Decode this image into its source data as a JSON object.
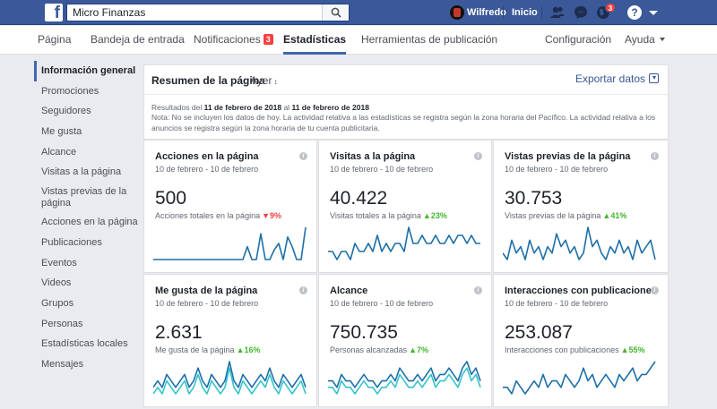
{
  "topbar": {
    "search_value": "Micro Finanzas",
    "user_name": "Wilfredo",
    "home_label": "Inicio",
    "notifications_count": "3",
    "help_symbol": "?",
    "brand_color": "#3b5998",
    "icons": [
      "facebook-logo-icon",
      "search-icon",
      "friend-requests-icon",
      "messenger-icon",
      "globe-notifications-icon",
      "help-icon",
      "caret-down-icon"
    ]
  },
  "page_tabs": [
    {
      "label": "Página"
    },
    {
      "label": "Bandeja de entrada"
    },
    {
      "label": "Notificaciones",
      "badge": "3"
    },
    {
      "label": "Estadísticas",
      "active": true
    },
    {
      "label": "Herramientas de publicación"
    },
    {
      "label": "Configuración"
    },
    {
      "label": "Ayuda"
    }
  ],
  "sidebar": {
    "items": [
      {
        "label": "Información general",
        "active": true
      },
      {
        "label": "Promociones"
      },
      {
        "label": "Seguidores"
      },
      {
        "label": "Me gusta"
      },
      {
        "label": "Alcance"
      },
      {
        "label": "Visitas a la página"
      },
      {
        "label": "Vistas previas de la página"
      },
      {
        "label": "Acciones en la página"
      },
      {
        "label": "Publicaciones"
      },
      {
        "label": "Eventos"
      },
      {
        "label": "Videos"
      },
      {
        "label": "Grupos"
      },
      {
        "label": "Personas"
      },
      {
        "label": "Estadísticas locales"
      },
      {
        "label": "Mensajes"
      }
    ]
  },
  "summary": {
    "title": "Resumen de la página",
    "period": "Ayer",
    "export_label": "Exportar datos",
    "results_prefix": "Resultados del",
    "date_from": "11 de febrero de 2018",
    "results_mid": "al",
    "date_to": "11 de febrero de 2018",
    "note": "Nota: No se incluyen los datos de hoy. La actividad relativa a las estadísticas se registra según la zona horaria del Pacífico. La actividad relativa a los anuncios se registra según la zona horaria de tu cuenta publicitaria."
  },
  "cards": [
    {
      "title": "Acciones en la página",
      "range": "10 de febrero - 10 de febrero",
      "value": "500",
      "sub": "Acciones totales en la página",
      "delta": "9%",
      "delta_dir": "down",
      "series": [
        [
          0,
          0,
          0,
          0,
          0,
          0,
          0,
          0,
          0,
          0,
          0,
          0,
          0,
          0,
          0,
          0,
          0,
          0,
          0,
          0,
          0,
          4,
          0,
          0,
          8,
          0,
          0,
          3,
          5,
          0,
          7,
          4,
          0,
          0,
          10
        ]
      ]
    },
    {
      "title": "Visitas a la página",
      "range": "10 de febrero - 10 de febrero",
      "value": "40.422",
      "sub": "Visitas totales a la página",
      "delta": "23%",
      "delta_dir": "up",
      "series": [
        [
          3,
          3,
          2,
          3,
          3,
          2,
          4,
          3,
          3,
          4,
          3,
          5,
          3,
          4,
          3,
          4,
          4,
          3,
          6,
          4,
          4,
          5,
          4,
          4,
          5,
          4,
          4,
          5,
          4,
          5,
          5,
          4,
          5,
          4,
          4
        ]
      ]
    },
    {
      "title": "Vistas previas de la página",
      "range": "10 de febrero - 10 de febrero",
      "value": "30.753",
      "sub": "Vistas previas de la página",
      "delta": "41%",
      "delta_dir": "up",
      "series": [
        [
          4,
          3,
          6,
          4,
          5,
          3,
          6,
          4,
          5,
          3,
          5,
          4,
          7,
          5,
          6,
          4,
          5,
          3,
          4,
          8,
          5,
          6,
          4,
          3,
          5,
          4,
          6,
          4,
          5,
          3,
          6,
          4,
          5,
          6,
          3
        ]
      ]
    },
    {
      "title": "Me gusta de la página",
      "range": "10 de febrero - 10 de febrero",
      "value": "2.631",
      "sub": "Me gusta de la página",
      "delta": "16%",
      "delta_dir": "up",
      "series": [
        [
          3,
          4,
          3,
          5,
          4,
          3,
          4,
          5,
          3,
          4,
          6,
          4,
          3,
          5,
          4,
          3,
          4,
          7,
          4,
          3,
          5,
          4,
          3,
          4,
          5,
          4,
          6,
          4,
          3,
          5,
          4,
          3,
          4,
          5,
          3
        ],
        [
          2,
          3,
          2,
          4,
          3,
          2,
          3,
          4,
          2,
          3,
          5,
          3,
          2,
          4,
          3,
          2,
          3,
          6,
          3,
          2,
          4,
          3,
          2,
          3,
          4,
          3,
          5,
          3,
          2,
          4,
          3,
          2,
          3,
          4,
          2
        ]
      ]
    },
    {
      "title": "Alcance",
      "range": "10 de febrero - 10 de febrero",
      "value": "750.735",
      "sub": "Personas alcanzadas",
      "delta": "7%",
      "delta_dir": "up",
      "series": [
        [
          3,
          3,
          2,
          4,
          3,
          3,
          2,
          3,
          4,
          3,
          3,
          2,
          3,
          3,
          4,
          3,
          5,
          4,
          3,
          3,
          4,
          3,
          4,
          5,
          3,
          4,
          4,
          5,
          4,
          3,
          5,
          6,
          4,
          5,
          3
        ],
        [
          2,
          2,
          1,
          3,
          2,
          2,
          1,
          2,
          3,
          2,
          2,
          1,
          2,
          2,
          3,
          2,
          4,
          3,
          2,
          2,
          3,
          2,
          3,
          4,
          2,
          3,
          3,
          4,
          3,
          2,
          4,
          5,
          3,
          4,
          2
        ]
      ]
    },
    {
      "title": "Interacciones con publicaciones",
      "range": "10 de febrero - 10 de febrero",
      "value": "253.087",
      "sub": "Interacciones con publicaciones",
      "delta": "55%",
      "delta_dir": "up",
      "series": [
        [
          3,
          3,
          2,
          4,
          3,
          2,
          3,
          4,
          3,
          5,
          3,
          4,
          4,
          3,
          5,
          4,
          3,
          4,
          6,
          4,
          5,
          3,
          4,
          5,
          4,
          3,
          5,
          4,
          5,
          6,
          4,
          5,
          5,
          6,
          7
        ]
      ]
    }
  ],
  "colors": {
    "accent": "#4267b2",
    "link": "#365899",
    "up": "#42b72a",
    "down": "#fa3e3e",
    "series_primary": "#1c6fa8",
    "series_secondary": "#34c3c9"
  }
}
